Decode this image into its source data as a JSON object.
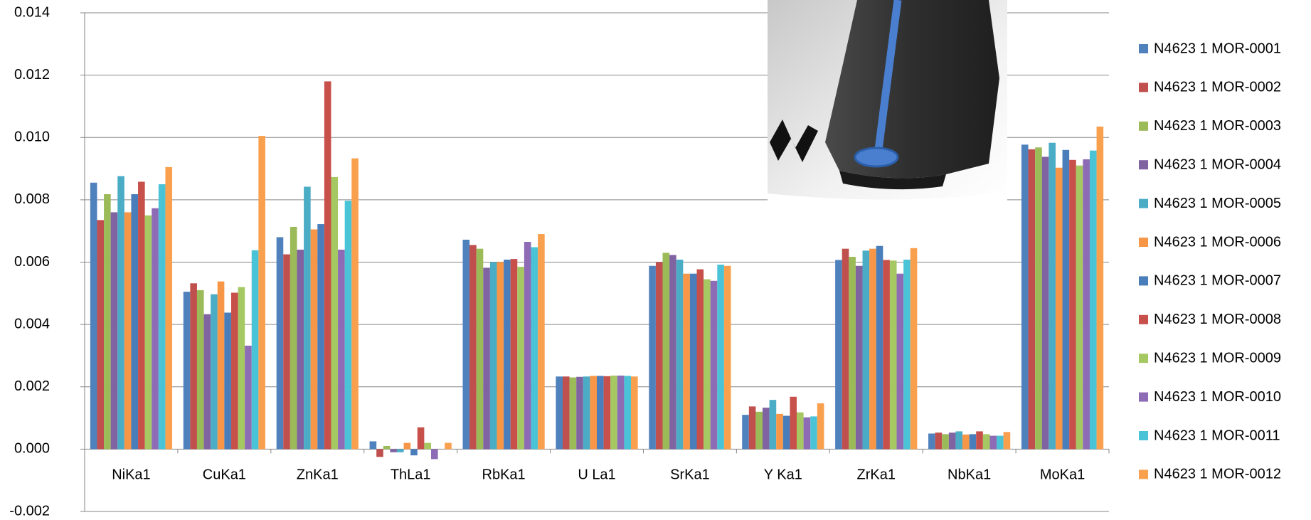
{
  "chart_data": {
    "type": "bar",
    "categories": [
      "NiKa1",
      "CuKa1",
      "ZnKa1",
      "ThLa1",
      "RbKa1",
      "U La1",
      "SrKa1",
      "Y Ka1",
      "ZrKa1",
      "NbKa1",
      "MoKa1"
    ],
    "ylim": [
      -0.002,
      0.014
    ],
    "yticks": [
      -0.002,
      {
        "value": 0,
        "label": "0.000"
      },
      0.002,
      0.004,
      0.006,
      0.008,
      {
        "value": 0.01,
        "label": "0.010"
      },
      0.012,
      0.014
    ],
    "grid": true,
    "legend": "right",
    "series": [
      {
        "name": "N4623 1 MOR-0001",
        "color": "#4f81bd",
        "values": [
          0.00855,
          0.00505,
          0.0068,
          0.00025,
          0.00672,
          0.00233,
          0.00588,
          0.0011,
          0.00607,
          0.0005,
          0.00977
        ]
      },
      {
        "name": "N4623 1 MOR-0002",
        "color": "#c0504d",
        "values": [
          0.00735,
          0.00532,
          0.00625,
          -0.00025,
          0.00655,
          0.00233,
          0.006,
          0.00137,
          0.00643,
          0.00053,
          0.00962
        ]
      },
      {
        "name": "N4623 1 MOR-0003",
        "color": "#9bbb59",
        "values": [
          0.00818,
          0.0051,
          0.00713,
          0.0001,
          0.00643,
          0.0023,
          0.0063,
          0.0012,
          0.00617,
          0.00048,
          0.00968
        ]
      },
      {
        "name": "N4623 1 MOR-0004",
        "color": "#8064a2",
        "values": [
          0.0076,
          0.00433,
          0.0064,
          -0.0001,
          0.00582,
          0.00232,
          0.00623,
          0.00133,
          0.00588,
          0.00053,
          0.00938
        ]
      },
      {
        "name": "N4623 1 MOR-0005",
        "color": "#4bacc6",
        "values": [
          0.00876,
          0.00497,
          0.00842,
          -0.0001,
          0.006,
          0.00233,
          0.00608,
          0.00158,
          0.00637,
          0.00057,
          0.00983
        ]
      },
      {
        "name": "N4623 1 MOR-0006",
        "color": "#f79646",
        "values": [
          0.0076,
          0.00538,
          0.00705,
          0.0002,
          0.006,
          0.00235,
          0.00563,
          0.00113,
          0.00643,
          0.00047,
          0.00903
        ]
      },
      {
        "name": "N4623 1 MOR-0007",
        "color": "#4a7ebb",
        "values": [
          0.00818,
          0.00438,
          0.00722,
          -0.0002,
          0.00608,
          0.00235,
          0.00563,
          0.00107,
          0.00652,
          0.00048,
          0.0096
        ]
      },
      {
        "name": "N4623 1 MOR-0008",
        "color": "#c8504a",
        "values": [
          0.00858,
          0.00502,
          0.0118,
          0.0007,
          0.0061,
          0.00234,
          0.00577,
          0.00168,
          0.00607,
          0.00057,
          0.00928
        ]
      },
      {
        "name": "N4623 1 MOR-0009",
        "color": "#a5c862",
        "values": [
          0.0075,
          0.0052,
          0.00873,
          0.0002,
          0.00585,
          0.00236,
          0.00545,
          0.00118,
          0.00605,
          0.00048,
          0.0091
        ]
      },
      {
        "name": "N4623 1 MOR-0010",
        "color": "#8d6bb5",
        "values": [
          0.00773,
          0.00332,
          0.0064,
          -0.00032,
          0.00665,
          0.00236,
          0.0054,
          0.00102,
          0.00563,
          0.00043,
          0.0093
        ]
      },
      {
        "name": "N4623 1 MOR-0011",
        "color": "#4bc3d6",
        "values": [
          0.0085,
          0.00638,
          0.00797,
          0,
          0.00648,
          0.00235,
          0.00592,
          0.00105,
          0.00608,
          0.00043,
          0.00958
        ]
      },
      {
        "name": "N4623 1 MOR-0012",
        "color": "#f9a04f",
        "values": [
          0.00905,
          0.01005,
          0.00933,
          0.0002,
          0.0069,
          0.00233,
          0.00588,
          0.00147,
          0.00645,
          0.00055,
          0.01035
        ]
      }
    ]
  }
}
